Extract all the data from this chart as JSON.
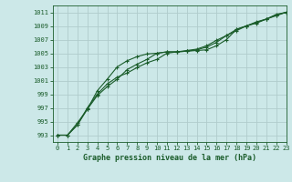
{
  "title": "Graphe pression niveau de la mer (hPa)",
  "background_color": "#cce8e8",
  "grid_color": "#b0cccc",
  "line_color": "#1a5c2a",
  "xlim": [
    -0.5,
    23
  ],
  "ylim": [
    992,
    1012
  ],
  "yticks": [
    993,
    995,
    997,
    999,
    1001,
    1003,
    1005,
    1007,
    1009,
    1011
  ],
  "xticks": [
    0,
    1,
    2,
    3,
    4,
    5,
    6,
    7,
    8,
    9,
    10,
    11,
    12,
    13,
    14,
    15,
    16,
    17,
    18,
    19,
    20,
    21,
    22,
    23
  ],
  "line1_x": [
    0,
    1,
    2,
    3,
    4,
    5,
    6,
    7,
    8,
    9,
    10,
    11,
    12,
    13,
    14,
    15,
    16,
    17,
    18,
    19,
    20,
    21,
    22,
    23
  ],
  "line1_y": [
    993.0,
    993.0,
    994.5,
    996.8,
    999.5,
    1001.2,
    1003.0,
    1003.9,
    1004.5,
    1004.9,
    1005.0,
    1005.2,
    1005.2,
    1005.3,
    1005.4,
    1005.5,
    1006.1,
    1007.0,
    1008.5,
    1009.0,
    1009.4,
    1010.0,
    1010.7,
    1011.0
  ],
  "line2_x": [
    0,
    1,
    2,
    3,
    4,
    5,
    6,
    7,
    8,
    9,
    10,
    11,
    12,
    13,
    14,
    15,
    16,
    17,
    18,
    19,
    20,
    21,
    22,
    23
  ],
  "line2_y": [
    993.0,
    993.0,
    994.5,
    997.0,
    999.0,
    1000.5,
    1001.5,
    1002.1,
    1002.9,
    1003.6,
    1004.1,
    1005.0,
    1005.2,
    1005.3,
    1005.5,
    1005.9,
    1006.6,
    1007.6,
    1008.3,
    1009.0,
    1009.5,
    1010.0,
    1010.5,
    1011.0
  ],
  "line3_x": [
    0,
    1,
    2,
    3,
    4,
    5,
    6,
    7,
    8,
    9,
    10,
    11,
    12,
    13,
    14,
    15,
    16,
    17,
    18,
    19,
    20,
    21,
    22,
    23
  ],
  "line3_y": [
    993.0,
    993.0,
    994.8,
    996.8,
    998.8,
    1000.1,
    1001.2,
    1002.6,
    1003.4,
    1004.1,
    1005.0,
    1005.2,
    1005.2,
    1005.4,
    1005.6,
    1006.1,
    1006.9,
    1007.6,
    1008.5,
    1009.0,
    1009.6,
    1010.0,
    1010.6,
    1011.0
  ]
}
